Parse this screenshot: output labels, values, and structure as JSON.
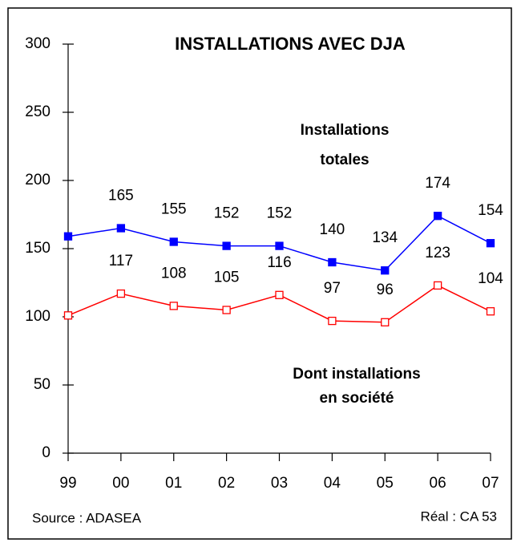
{
  "chart_data": {
    "type": "line",
    "title": "INSTALLATIONS AVEC DJA",
    "categories": [
      "99",
      "00",
      "01",
      "02",
      "03",
      "04",
      "05",
      "06",
      "07"
    ],
    "series": [
      {
        "name": "Installations totales",
        "color": "#0000ff",
        "marker": "filled",
        "values": [
          159,
          165,
          155,
          152,
          152,
          140,
          134,
          174,
          154
        ],
        "value_labels": [
          null,
          "165",
          "155",
          "152",
          "152",
          "140",
          "134",
          "174",
          "154"
        ]
      },
      {
        "name": "Dont installations en société",
        "color": "#ff0000",
        "marker": "open",
        "values": [
          101,
          117,
          108,
          105,
          116,
          97,
          96,
          123,
          104
        ],
        "value_labels": [
          null,
          "117",
          "108",
          "105",
          "116",
          "97",
          "96",
          "123",
          "104"
        ]
      }
    ],
    "annotations": [
      "Installations",
      "totales",
      "Dont installations",
      "en société"
    ],
    "source": "Source : ADASEA",
    "credit": "Réal : CA 53",
    "ylim": [
      0,
      300
    ],
    "yticks": [
      0,
      50,
      100,
      150,
      200,
      250,
      300
    ],
    "grid": false
  }
}
